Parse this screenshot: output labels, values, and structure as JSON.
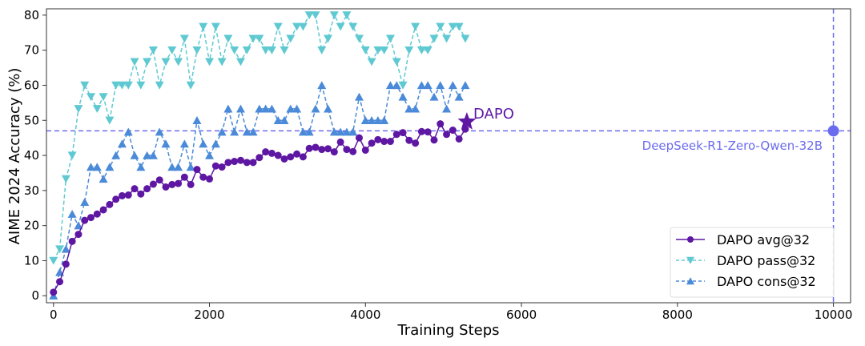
{
  "chart_data": {
    "type": "line",
    "title": "",
    "xlabel": "Training Steps",
    "ylabel": "AIME 2024 Accuracy (%)",
    "xlim": [
      -90,
      10220
    ],
    "ylim": [
      -2,
      81.8
    ],
    "xticks": [
      0,
      2000,
      4000,
      6000,
      8000,
      10000
    ],
    "yticks": [
      0,
      10,
      20,
      30,
      40,
      50,
      60,
      70,
      80
    ],
    "grid": false,
    "legend_position": "bottom-right",
    "x_step": 80,
    "series": [
      {
        "name": "DAPO avg@32",
        "color": "#5e17a2",
        "marker": "circle",
        "linestyle": "solid",
        "values": [
          1,
          4,
          9,
          15.5,
          17.5,
          21.5,
          22.3,
          23.3,
          24.5,
          26,
          27.5,
          28.5,
          28.7,
          30.5,
          29,
          30.5,
          31.8,
          33,
          31,
          31.7,
          32,
          33.8,
          31.7,
          36,
          33.8,
          33.3,
          37,
          36.7,
          38,
          38.3,
          38.6,
          38,
          38,
          39.4,
          41,
          40.6,
          40,
          39,
          39.6,
          40.4,
          39.6,
          42,
          42.3,
          41.7,
          41.9,
          41,
          43.8,
          41.7,
          41.1,
          45,
          41.5,
          43.5,
          44.5,
          44,
          44,
          46,
          46.5,
          44.3,
          43.5,
          46.8,
          46.7,
          44.4,
          49,
          46,
          47.2,
          44.7,
          47.5
        ]
      },
      {
        "name": "DAPO pass@32",
        "color": "#5fc9d2",
        "marker": "triangle-down",
        "linestyle": "dashed",
        "values": [
          10,
          13.3,
          33.3,
          40,
          53.3,
          60,
          56.7,
          53.3,
          56.7,
          50,
          60,
          60,
          60,
          66.7,
          60,
          66.7,
          70,
          60,
          66.7,
          70,
          66.7,
          73.3,
          60,
          70,
          76.7,
          66.7,
          76.7,
          66.7,
          73.3,
          70,
          66.7,
          70,
          73.3,
          73.3,
          70,
          70,
          76.7,
          70,
          73.3,
          76.7,
          76.7,
          80,
          80,
          70,
          73.3,
          80,
          76.7,
          80,
          76.7,
          73.3,
          70,
          66.7,
          70,
          70,
          73.3,
          66.7,
          60,
          70,
          76.7,
          70,
          70,
          73.3,
          76.7,
          73.3,
          76.7,
          76.7,
          73.3
        ]
      },
      {
        "name": "DAPO cons@32",
        "color": "#4a8ad8",
        "marker": "triangle-up",
        "linestyle": "dashed",
        "values": [
          0,
          6.7,
          13.3,
          23.3,
          20,
          26.7,
          36.7,
          36.7,
          33.3,
          36.7,
          40,
          43.3,
          46.7,
          40,
          36.7,
          40,
          40,
          46.7,
          43.3,
          36.7,
          36.7,
          43.3,
          36.7,
          50,
          43.3,
          40,
          43.3,
          46.7,
          53.3,
          46.7,
          53.3,
          46.7,
          46.7,
          53.3,
          53.3,
          53.3,
          50,
          50,
          53.3,
          53.3,
          46.7,
          46.7,
          53.3,
          60,
          53.3,
          46.7,
          46.7,
          46.7,
          46.7,
          56.7,
          50,
          50,
          50,
          50,
          60,
          60,
          56.7,
          53.3,
          53.3,
          60,
          60,
          56.7,
          60,
          53.3,
          60,
          56.7,
          60
        ]
      }
    ],
    "highlight": {
      "label": "DAPO",
      "x": 5300,
      "y": 49.6,
      "color": "#5e17a2",
      "marker": "star"
    },
    "reference": {
      "label": "DeepSeek-R1-Zero-Qwen-32B",
      "x": 10000,
      "y": 47,
      "color": "#6b6bf0",
      "marker": "circle"
    }
  }
}
